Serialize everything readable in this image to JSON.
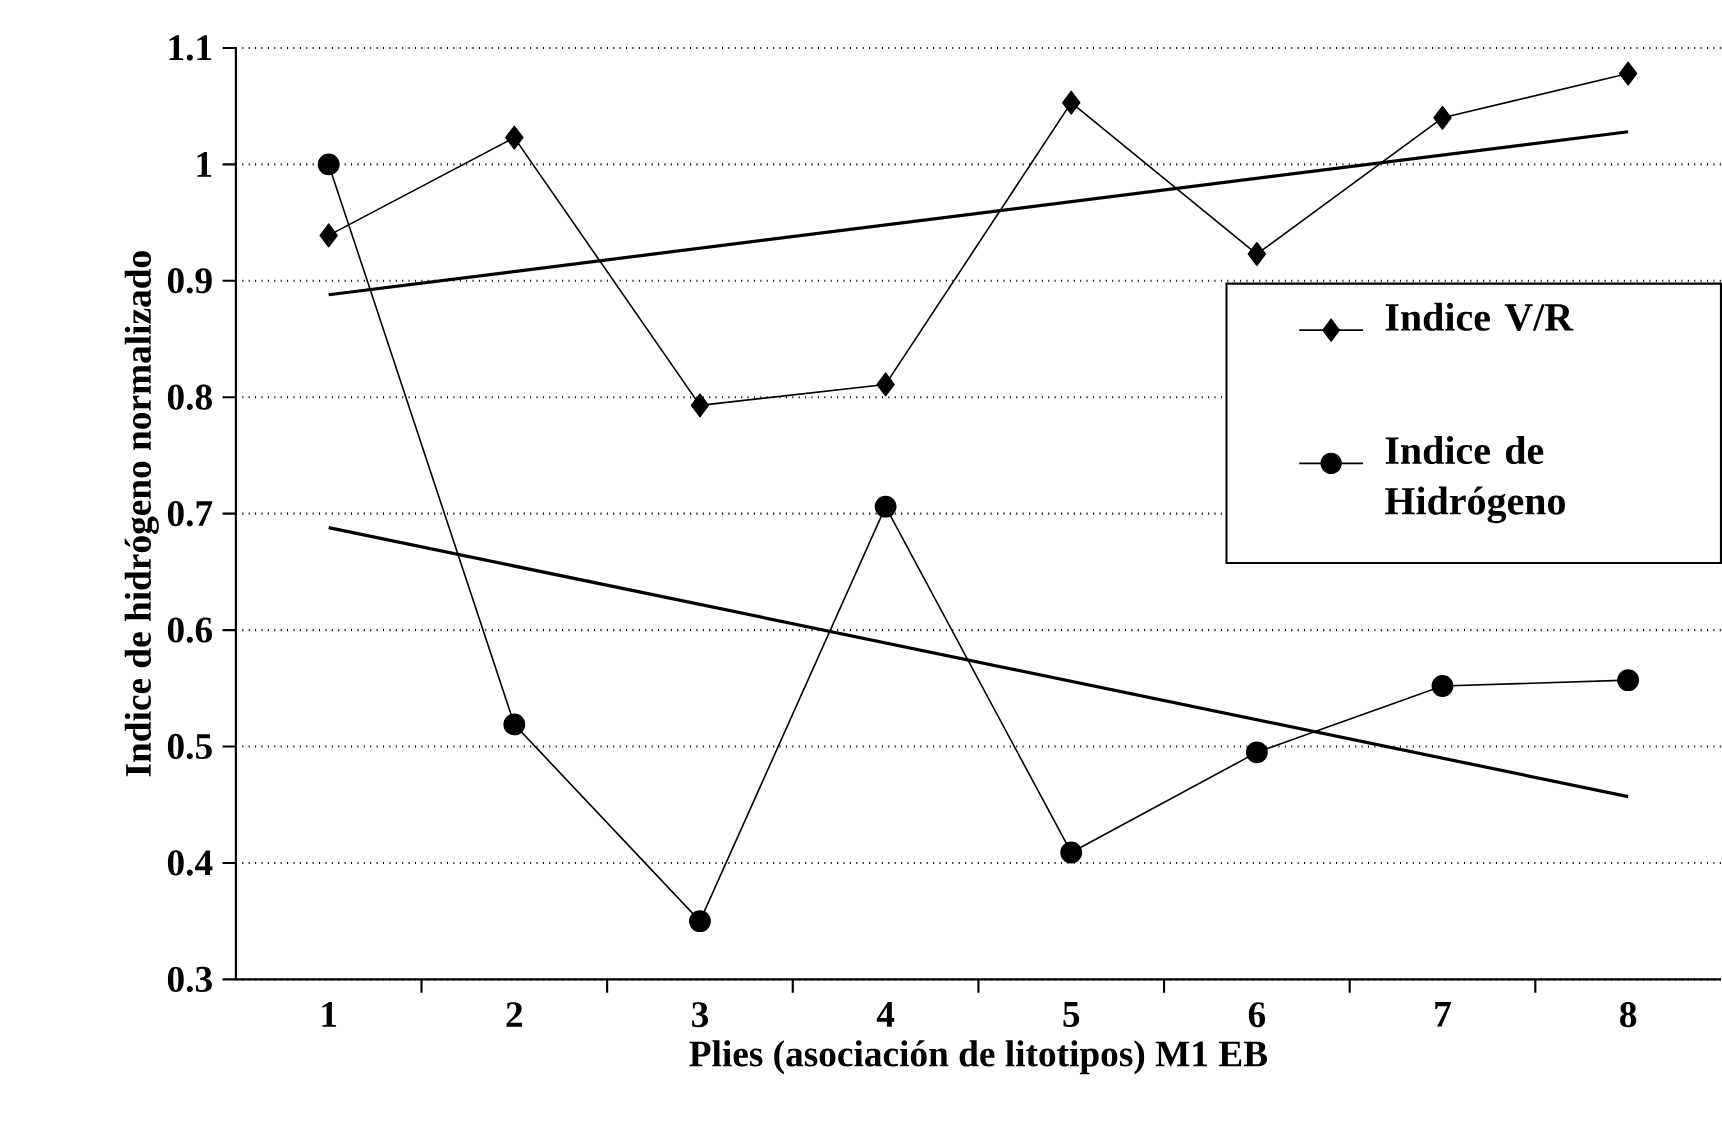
{
  "chart_data": {
    "type": "line",
    "xlabel": "Plies (asociación de litotipos) M1 EB",
    "ylabel": "Indice de hidrógeno normalizado",
    "categories": [
      "1",
      "2",
      "3",
      "4",
      "5",
      "6",
      "7",
      "8"
    ],
    "series": [
      {
        "name": "Indice V/R",
        "color": "#000000",
        "marker": "diamond",
        "values": [
          0.939,
          1.023,
          0.793,
          0.811,
          1.053,
          0.923,
          1.04,
          1.078
        ]
      },
      {
        "name": "Indice de Hidrógeno",
        "color": "#000000",
        "marker": "circle",
        "values": [
          1.0,
          0.519,
          0.35,
          0.706,
          0.409,
          0.495,
          0.552,
          0.557
        ]
      },
      {
        "type": "line",
        "color": "#000000",
        "marker": "none",
        "x": [
          "1",
          "8"
        ],
        "values": [
          0.888,
          1.028
        ]
      },
      {
        "type": "line",
        "color": "#000000",
        "marker": "none",
        "x": [
          "1",
          "8"
        ],
        "values": [
          0.688,
          0.457
        ]
      }
    ],
    "ylim": [
      0.3,
      1.1
    ],
    "yticks": [
      0.3,
      0.4,
      0.5,
      0.6,
      0.7,
      0.8,
      0.9,
      1,
      1.1
    ],
    "grid": "y",
    "legend": "right",
    "line_style": "solid"
  }
}
